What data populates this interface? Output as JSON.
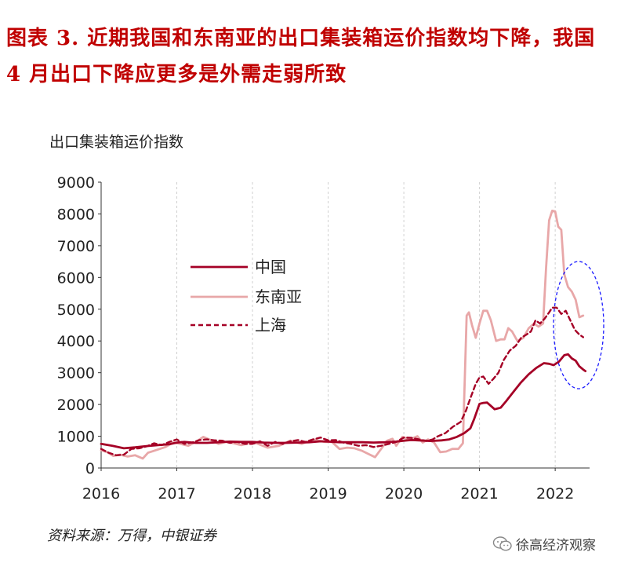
{
  "figure_title": "图表 3. 近期我国和东南亚的出口集装箱运价指数均下降，我国 4 月出口下降应更多是外需走弱所致",
  "source_note": "资料来源：万得，中银证券",
  "watermark": "徐高经济观察",
  "colors": {
    "title": "#c00000",
    "china": "#a50026",
    "southeast_asia": "#e8a7a8",
    "shanghai": "#a50026",
    "highlight_ellipse": "#1a1aff",
    "grid": "#d0d0d0"
  },
  "chart_data": {
    "type": "line",
    "ylabel": "出口集装箱运价指数",
    "xlabel": "",
    "xlim": [
      2016,
      2022.4
    ],
    "ylim": [
      0,
      9000
    ],
    "yticks": [
      0,
      1000,
      2000,
      3000,
      4000,
      5000,
      6000,
      7000,
      8000,
      9000
    ],
    "xticks": [
      2016,
      2017,
      2018,
      2019,
      2020,
      2021,
      2022
    ],
    "grid": "vertical dashed",
    "legend": "upper-left-center",
    "annotation": "dashed ellipse highlighting 2022 declines",
    "series": [
      {
        "name": "中国",
        "style": "solid",
        "color_key": "china",
        "points": [
          [
            2016.0,
            760
          ],
          [
            2016.15,
            700
          ],
          [
            2016.3,
            620
          ],
          [
            2016.45,
            650
          ],
          [
            2016.6,
            690
          ],
          [
            2016.75,
            720
          ],
          [
            2016.9,
            750
          ],
          [
            2017.0,
            800
          ],
          [
            2017.1,
            820
          ],
          [
            2017.25,
            790
          ],
          [
            2017.4,
            790
          ],
          [
            2017.55,
            810
          ],
          [
            2017.7,
            830
          ],
          [
            2017.85,
            820
          ],
          [
            2018.0,
            820
          ],
          [
            2018.15,
            800
          ],
          [
            2018.3,
            790
          ],
          [
            2018.45,
            790
          ],
          [
            2018.6,
            800
          ],
          [
            2018.75,
            810
          ],
          [
            2018.9,
            840
          ],
          [
            2019.0,
            830
          ],
          [
            2019.15,
            810
          ],
          [
            2019.3,
            810
          ],
          [
            2019.45,
            810
          ],
          [
            2019.6,
            800
          ],
          [
            2019.75,
            810
          ],
          [
            2019.9,
            830
          ],
          [
            2020.0,
            860
          ],
          [
            2020.1,
            880
          ],
          [
            2020.2,
            870
          ],
          [
            2020.35,
            850
          ],
          [
            2020.5,
            870
          ],
          [
            2020.6,
            900
          ],
          [
            2020.7,
            980
          ],
          [
            2020.8,
            1100
          ],
          [
            2020.88,
            1250
          ],
          [
            2020.93,
            1550
          ],
          [
            2021.0,
            2020
          ],
          [
            2021.05,
            2050
          ],
          [
            2021.1,
            2060
          ],
          [
            2021.2,
            1850
          ],
          [
            2021.28,
            1900
          ],
          [
            2021.35,
            2100
          ],
          [
            2021.45,
            2400
          ],
          [
            2021.55,
            2700
          ],
          [
            2021.65,
            2950
          ],
          [
            2021.75,
            3150
          ],
          [
            2021.85,
            3300
          ],
          [
            2021.92,
            3280
          ],
          [
            2021.98,
            3240
          ],
          [
            2022.05,
            3350
          ],
          [
            2022.12,
            3550
          ],
          [
            2022.17,
            3580
          ],
          [
            2022.22,
            3450
          ],
          [
            2022.27,
            3380
          ],
          [
            2022.32,
            3200
          ],
          [
            2022.37,
            3100
          ],
          [
            2022.4,
            3050
          ]
        ]
      },
      {
        "name": "东南亚",
        "style": "solid",
        "color_key": "southeast_asia",
        "points": [
          [
            2016.0,
            560
          ],
          [
            2016.08,
            500
          ],
          [
            2016.16,
            380
          ],
          [
            2016.25,
            420
          ],
          [
            2016.35,
            360
          ],
          [
            2016.45,
            400
          ],
          [
            2016.55,
            300
          ],
          [
            2016.62,
            480
          ],
          [
            2016.72,
            560
          ],
          [
            2016.85,
            660
          ],
          [
            2016.95,
            800
          ],
          [
            2017.05,
            760
          ],
          [
            2017.15,
            700
          ],
          [
            2017.25,
            820
          ],
          [
            2017.35,
            980
          ],
          [
            2017.45,
            880
          ],
          [
            2017.55,
            760
          ],
          [
            2017.65,
            820
          ],
          [
            2017.75,
            780
          ],
          [
            2017.85,
            720
          ],
          [
            2017.95,
            780
          ],
          [
            2018.05,
            780
          ],
          [
            2018.2,
            640
          ],
          [
            2018.35,
            700
          ],
          [
            2018.5,
            860
          ],
          [
            2018.65,
            760
          ],
          [
            2018.8,
            900
          ],
          [
            2018.95,
            820
          ],
          [
            2019.05,
            820
          ],
          [
            2019.15,
            600
          ],
          [
            2019.25,
            640
          ],
          [
            2019.35,
            620
          ],
          [
            2019.45,
            540
          ],
          [
            2019.55,
            420
          ],
          [
            2019.62,
            340
          ],
          [
            2019.78,
            860
          ],
          [
            2019.85,
            920
          ],
          [
            2019.9,
            700
          ],
          [
            2019.98,
            980
          ],
          [
            2020.08,
            900
          ],
          [
            2020.18,
            1000
          ],
          [
            2020.25,
            800
          ],
          [
            2020.32,
            900
          ],
          [
            2020.4,
            800
          ],
          [
            2020.48,
            500
          ],
          [
            2020.56,
            520
          ],
          [
            2020.64,
            600
          ],
          [
            2020.72,
            600
          ],
          [
            2020.78,
            780
          ],
          [
            2020.83,
            4800
          ],
          [
            2020.86,
            4900
          ],
          [
            2020.9,
            4500
          ],
          [
            2020.95,
            4100
          ],
          [
            2021.0,
            4550
          ],
          [
            2021.05,
            4950
          ],
          [
            2021.1,
            4950
          ],
          [
            2021.15,
            4650
          ],
          [
            2021.22,
            4000
          ],
          [
            2021.28,
            4050
          ],
          [
            2021.33,
            4050
          ],
          [
            2021.38,
            4400
          ],
          [
            2021.43,
            4300
          ],
          [
            2021.5,
            4000
          ],
          [
            2021.58,
            4100
          ],
          [
            2021.65,
            4400
          ],
          [
            2021.72,
            4550
          ],
          [
            2021.78,
            4450
          ],
          [
            2021.84,
            4550
          ],
          [
            2021.88,
            6300
          ],
          [
            2021.92,
            7800
          ],
          [
            2021.96,
            8100
          ],
          [
            2022.0,
            8080
          ],
          [
            2022.04,
            7600
          ],
          [
            2022.08,
            7500
          ],
          [
            2022.12,
            6100
          ],
          [
            2022.17,
            5700
          ],
          [
            2022.22,
            5550
          ],
          [
            2022.27,
            5300
          ],
          [
            2022.32,
            4750
          ],
          [
            2022.37,
            4800
          ]
        ]
      },
      {
        "name": "上海",
        "style": "dashed",
        "color_key": "shanghai",
        "points": [
          [
            2016.0,
            600
          ],
          [
            2016.1,
            480
          ],
          [
            2016.2,
            400
          ],
          [
            2016.3,
            420
          ],
          [
            2016.4,
            600
          ],
          [
            2016.5,
            620
          ],
          [
            2016.6,
            680
          ],
          [
            2016.7,
            780
          ],
          [
            2016.8,
            720
          ],
          [
            2016.9,
            820
          ],
          [
            2017.0,
            900
          ],
          [
            2017.1,
            760
          ],
          [
            2017.2,
            800
          ],
          [
            2017.3,
            880
          ],
          [
            2017.4,
            900
          ],
          [
            2017.5,
            870
          ],
          [
            2017.6,
            860
          ],
          [
            2017.7,
            790
          ],
          [
            2017.8,
            820
          ],
          [
            2017.9,
            760
          ],
          [
            2018.0,
            760
          ],
          [
            2018.1,
            840
          ],
          [
            2018.2,
            700
          ],
          [
            2018.3,
            820
          ],
          [
            2018.4,
            760
          ],
          [
            2018.5,
            840
          ],
          [
            2018.6,
            880
          ],
          [
            2018.7,
            820
          ],
          [
            2018.8,
            900
          ],
          [
            2018.9,
            960
          ],
          [
            2019.0,
            870
          ],
          [
            2019.1,
            880
          ],
          [
            2019.2,
            800
          ],
          [
            2019.3,
            760
          ],
          [
            2019.4,
            700
          ],
          [
            2019.5,
            720
          ],
          [
            2019.6,
            660
          ],
          [
            2019.7,
            700
          ],
          [
            2019.8,
            760
          ],
          [
            2019.9,
            820
          ],
          [
            2020.0,
            960
          ],
          [
            2020.1,
            950
          ],
          [
            2020.2,
            900
          ],
          [
            2020.3,
            850
          ],
          [
            2020.38,
            900
          ],
          [
            2020.45,
            1000
          ],
          [
            2020.55,
            1100
          ],
          [
            2020.65,
            1300
          ],
          [
            2020.75,
            1450
          ],
          [
            2020.82,
            1800
          ],
          [
            2020.88,
            2200
          ],
          [
            2020.95,
            2650
          ],
          [
            2021.0,
            2850
          ],
          [
            2021.05,
            2880
          ],
          [
            2021.12,
            2650
          ],
          [
            2021.18,
            2800
          ],
          [
            2021.25,
            3000
          ],
          [
            2021.32,
            3400
          ],
          [
            2021.4,
            3700
          ],
          [
            2021.48,
            3850
          ],
          [
            2021.55,
            4100
          ],
          [
            2021.62,
            4200
          ],
          [
            2021.68,
            4300
          ],
          [
            2021.74,
            4650
          ],
          [
            2021.8,
            4550
          ],
          [
            2021.86,
            4700
          ],
          [
            2021.92,
            4900
          ],
          [
            2021.96,
            5050
          ],
          [
            2022.02,
            5050
          ],
          [
            2022.08,
            4850
          ],
          [
            2022.14,
            4950
          ],
          [
            2022.2,
            4650
          ],
          [
            2022.26,
            4350
          ],
          [
            2022.32,
            4200
          ],
          [
            2022.37,
            4120
          ]
        ]
      }
    ]
  }
}
